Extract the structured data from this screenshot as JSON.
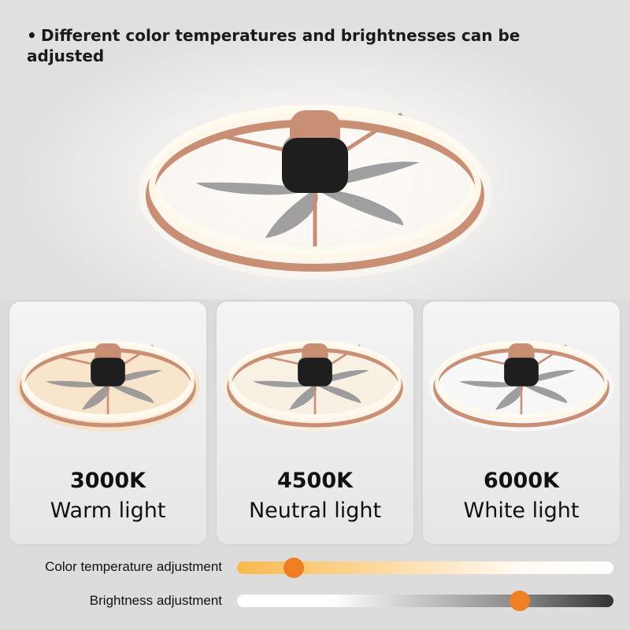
{
  "headline": {
    "bullet": "•",
    "text": "Different color temperatures and brightnesses can be adjusted"
  },
  "cards": [
    {
      "kelvin": "3000K",
      "label": "Warm light",
      "glow": "#ffd9a8"
    },
    {
      "kelvin": "4500K",
      "label": "Neutral light",
      "glow": "#fff1d8"
    },
    {
      "kelvin": "6000K",
      "label": "White light",
      "glow": "#ffffff"
    }
  ],
  "sliders": {
    "color_temperature": {
      "label": "Color temperature adjustment",
      "value": 0.15,
      "knob_color": "#f07f22"
    },
    "brightness": {
      "label": "Brightness adjustment",
      "value": 0.75,
      "knob_color": "#f07f22"
    }
  },
  "colors": {
    "ring": "#c98f74",
    "blade": "#8e8e90",
    "motor": "#1e1e1e"
  }
}
